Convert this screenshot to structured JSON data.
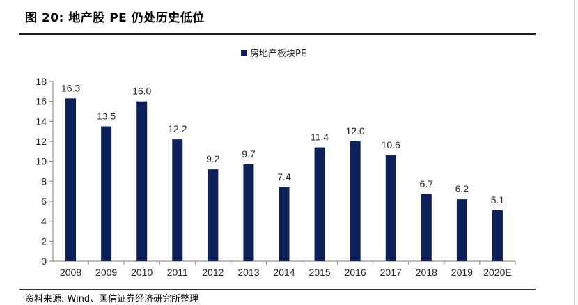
{
  "figure": {
    "title": "图 20:  地产股 PE 仍处历史低位",
    "source": "资料来源: Wind、国信证券经济研究所整理"
  },
  "chart_data": {
    "type": "bar",
    "categories": [
      "2008",
      "2009",
      "2010",
      "2011",
      "2012",
      "2013",
      "2014",
      "2015",
      "2016",
      "2017",
      "2018",
      "2019",
      "2020E"
    ],
    "series": [
      {
        "name": "房地产板块PE",
        "values": [
          16.3,
          13.5,
          16.0,
          12.2,
          9.2,
          9.7,
          7.4,
          11.4,
          12.0,
          10.6,
          6.7,
          6.2,
          5.1
        ],
        "labels": [
          "16.3",
          "13.5",
          "16.0",
          "12.2",
          "9.2",
          "9.7",
          "7.4",
          "11.4",
          "12.0",
          "10.6",
          "6.7",
          "6.2",
          "5.1"
        ],
        "color": "#0d2158"
      }
    ],
    "ylim": [
      0,
      18
    ],
    "yticks": [
      "0",
      "2",
      "4",
      "6",
      "8",
      "10",
      "12",
      "14",
      "16",
      "18"
    ],
    "legend_position": "top-center",
    "grid": false,
    "xlabel": "",
    "ylabel": ""
  }
}
